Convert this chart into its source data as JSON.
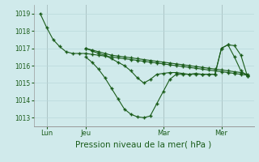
{
  "background_color": "#d0eaeb",
  "grid_color": "#b8d8da",
  "line_color": "#1a5c1a",
  "marker_color": "#1a5c1a",
  "xlabel": "Pression niveau de la mer( hPa )",
  "xlabel_fontsize": 7.5,
  "ylim": [
    1012.5,
    1019.5
  ],
  "yticks": [
    1013,
    1014,
    1015,
    1016,
    1017,
    1018,
    1019
  ],
  "xlim": [
    -2,
    66
  ],
  "x_day_labels": [
    {
      "label": "Lun",
      "x": 2
    },
    {
      "label": "Jeu",
      "x": 14
    },
    {
      "label": "Mar",
      "x": 38
    },
    {
      "label": "Mer",
      "x": 56
    }
  ],
  "x_day_vlines": [
    2,
    14,
    38,
    56
  ],
  "series": [
    {
      "x": [
        0,
        2,
        4,
        6,
        8,
        10,
        12,
        14,
        16,
        18,
        20,
        22,
        24,
        26,
        28,
        30,
        32,
        34,
        36,
        38,
        40,
        42,
        44,
        46,
        48,
        50,
        52,
        54,
        56,
        58,
        60,
        62,
        64
      ],
      "y": [
        1019.0,
        1018.2,
        1017.5,
        1017.1,
        1016.8,
        1016.7,
        1016.7,
        1016.7,
        1016.65,
        1016.6,
        1016.55,
        1016.5,
        1016.45,
        1016.4,
        1016.35,
        1016.3,
        1016.25,
        1016.2,
        1016.15,
        1016.1,
        1016.05,
        1016.0,
        1015.95,
        1015.9,
        1015.85,
        1015.8,
        1015.75,
        1015.7,
        1015.65,
        1015.6,
        1015.55,
        1015.5,
        1015.45
      ]
    },
    {
      "x": [
        14,
        16,
        18,
        20,
        22,
        24,
        26,
        28,
        30,
        32,
        34,
        36,
        38,
        40,
        42,
        44,
        46,
        48,
        50,
        52,
        54,
        56,
        58,
        60,
        62,
        64
      ],
      "y": [
        1017.0,
        1016.9,
        1016.8,
        1016.7,
        1016.6,
        1016.55,
        1016.5,
        1016.45,
        1016.4,
        1016.35,
        1016.3,
        1016.25,
        1016.2,
        1016.15,
        1016.1,
        1016.05,
        1016.0,
        1015.95,
        1015.9,
        1015.85,
        1015.8,
        1015.75,
        1015.7,
        1015.65,
        1015.6,
        1015.5
      ]
    },
    {
      "x": [
        14,
        16,
        18,
        20,
        22,
        24,
        26,
        28,
        30,
        32,
        34,
        36,
        38,
        40,
        42,
        44,
        46,
        48,
        50,
        52,
        54,
        56,
        58,
        60,
        62,
        64
      ],
      "y": [
        1016.5,
        1016.2,
        1015.8,
        1015.3,
        1014.7,
        1014.1,
        1013.5,
        1013.2,
        1013.05,
        1013.0,
        1013.1,
        1013.8,
        1014.5,
        1015.2,
        1015.5,
        1015.5,
        1015.5,
        1015.55,
        1015.5,
        1015.5,
        1015.5,
        1017.0,
        1017.2,
        1016.5,
        1015.7,
        1015.4
      ]
    },
    {
      "x": [
        14,
        16,
        18,
        20,
        22,
        24,
        26,
        28,
        30,
        32,
        34,
        36,
        38,
        40,
        42,
        44,
        46,
        48,
        50,
        52,
        54,
        56,
        58,
        60,
        62,
        64
      ],
      "y": [
        1017.0,
        1016.85,
        1016.7,
        1016.6,
        1016.4,
        1016.2,
        1016.0,
        1015.7,
        1015.3,
        1015.0,
        1015.2,
        1015.5,
        1015.55,
        1015.6,
        1015.6,
        1015.55,
        1015.5,
        1015.5,
        1015.5,
        1015.5,
        1015.5,
        1017.0,
        1017.2,
        1017.15,
        1016.6,
        1015.4
      ]
    }
  ]
}
